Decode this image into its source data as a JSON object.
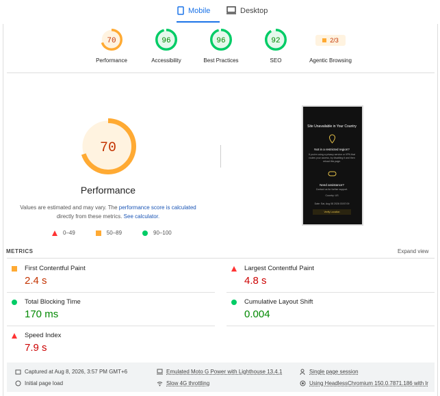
{
  "tabs": [
    "Mobile",
    "Desktop"
  ],
  "active_tab": 0,
  "scores": [
    {
      "label": "Performance",
      "score": 70,
      "rating": "average"
    },
    {
      "label": "Accessibility",
      "score": 96,
      "rating": "pass"
    },
    {
      "label": "Best Practices",
      "score": 96,
      "rating": "pass"
    },
    {
      "label": "SEO",
      "score": 92,
      "rating": "pass"
    },
    {
      "label": "Agentic Browsing",
      "score_label": "2/3",
      "rating": "average"
    }
  ],
  "main": {
    "score": 70,
    "rating": "average",
    "title": "Performance",
    "note": [
      "Values are estimated and may vary. The",
      "performance score is calculated",
      "directly from these metrics.",
      "See calculator."
    ],
    "legend": [
      "0–49",
      "50–89",
      "90–100"
    ]
  },
  "screenshot": {
    "title": "Site Unavailable in Your Country",
    "subtitle": "Not in a restricted region?",
    "text": "If you're using a privacy service or VPN that routes your access, try disabling it and then reload this page.",
    "help": "Need assistance?",
    "help_text": "Contact us for further support.",
    "country": "Country: US",
    "date": "Date: Sat, Aug 08 2026 03:57:09",
    "button": "Verify Location"
  },
  "metrics": {
    "header": "METRICS",
    "expand": "Expand view",
    "items": [
      {
        "label": "First Contentful Paint",
        "value": "2.4 s",
        "rating": "average"
      },
      {
        "label": "Largest Contentful Paint",
        "value": "4.8 s",
        "rating": "fail"
      },
      {
        "label": "Total Blocking Time",
        "value": "170 ms",
        "rating": "pass"
      },
      {
        "label": "Cumulative Layout Shift",
        "value": "0.004",
        "rating": "pass"
      },
      {
        "label": "Speed Index",
        "value": "7.9 s",
        "rating": "fail"
      }
    ]
  },
  "footer": [
    "Captured at Aug 8, 2026, 3:57 PM GMT+6",
    "Emulated Moto G Power with Lighthouse 13.4.1",
    "Single page session",
    "Initial page load",
    "Slow 4G throttling",
    "Using HeadlessChromium 150.0.7871.186 with lr"
  ]
}
